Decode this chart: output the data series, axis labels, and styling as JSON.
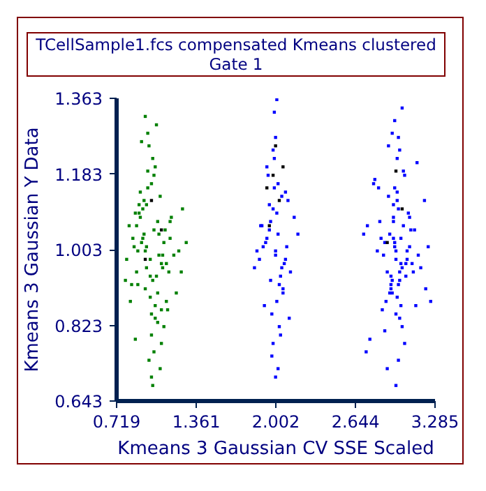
{
  "chart_data": {
    "type": "scatter",
    "title": "TCellSample1.fcs compensated Kmeans clustered",
    "subtitle": "Gate 1",
    "xlabel": "Kmeans 3 Gaussian CV SSE Scaled",
    "ylabel": "Kmeans 3 Gaussian Y Data",
    "xlim": [
      0.719,
      3.285
    ],
    "xticks": [
      0.719,
      1.361,
      2.002,
      2.644,
      3.285
    ],
    "ylim": [
      0.643,
      1.363
    ],
    "yticks": [
      0.643,
      0.823,
      1.003,
      1.183,
      1.363
    ],
    "grid": false,
    "marker": "square",
    "series": [
      {
        "color": "#008000",
        "x": [
          0.95,
          1.02,
          0.88,
          1.1,
          0.99,
          0.93,
          1.05,
          1.15,
          0.85,
          1.01,
          0.97,
          1.08,
          0.91,
          1.12,
          0.96,
          1.03,
          0.89,
          1.06,
          1.0,
          0.94,
          1.18,
          0.82,
          1.04,
          0.98,
          1.09,
          0.92,
          1.13,
          0.87,
          1.0,
          1.07,
          0.95,
          1.22,
          0.8,
          1.02,
          0.99,
          1.11,
          0.9,
          1.05,
          0.97,
          1.14,
          0.86,
          1.03,
          1.0,
          0.93,
          1.08,
          1.25,
          0.79,
          1.01,
          0.96,
          1.1,
          0.88,
          1.06,
          0.98,
          1.16,
          0.84,
          1.04,
          0.94,
          1.02,
          1.12,
          0.91,
          1.28,
          0.83,
          1.07,
          0.97,
          1.0,
          0.89,
          1.2,
          0.92,
          1.05,
          0.99,
          1.03,
          0.95,
          1.09,
          0.87,
          1.15,
          1.01,
          0.96,
          1.08,
          1.24,
          0.9
        ],
        "values": [
          1.0,
          1.05,
          0.95,
          1.02,
          0.98,
          1.1,
          0.9,
          1.07,
          1.03,
          0.93,
          1.15,
          0.97,
          1.08,
          0.88,
          1.01,
          1.2,
          0.92,
          1.04,
          0.85,
          1.12,
          0.99,
          1.06,
          0.94,
          1.25,
          0.96,
          1.02,
          0.86,
          1.09,
          0.8,
          1.13,
          0.91,
          1.0,
          0.98,
          1.18,
          0.89,
          1.05,
          1.11,
          0.83,
          1.28,
          0.95,
          1.01,
          0.87,
          1.16,
          1.03,
          0.78,
          1.1,
          0.93,
          1.22,
          0.96,
          0.82,
          1.06,
          0.99,
          0.74,
          1.08,
          0.92,
          1.3,
          1.04,
          0.76,
          0.97,
          1.14,
          1.02,
          0.88,
          0.72,
          1.19,
          0.7,
          1.0,
          0.9,
          1.26,
          1.07,
          0.94,
          0.84,
          1.32,
          0.99,
          0.79,
          1.03,
          0.68,
          1.11,
          0.86,
          0.95,
          1.09
        ]
      },
      {
        "color": "#0000ff",
        "x": [
          2.0,
          1.95,
          2.05,
          1.98,
          2.03,
          1.92,
          2.08,
          1.99,
          2.01,
          1.96,
          2.04,
          1.9,
          2.1,
          1.97,
          2.02,
          1.94,
          2.06,
          2.0,
          1.88,
          2.12,
          1.99,
          2.03,
          1.93,
          2.07,
          1.98,
          2.01,
          1.85,
          2.15,
          2.0,
          1.96,
          2.05,
          1.91,
          2.09,
          1.97,
          2.02,
          1.83,
          2.18,
          1.99,
          2.04,
          1.95,
          2.0,
          1.93,
          2.06,
          1.89,
          2.11,
          1.98,
          2.02,
          1.87,
          2.08,
          2.01,
          2.97,
          2.92,
          3.02,
          2.95,
          3.0,
          2.88,
          3.06,
          2.98,
          2.94,
          3.03,
          2.9,
          3.08,
          2.96,
          3.01,
          2.85,
          3.1,
          2.99,
          2.93,
          3.04,
          2.87,
          3.12,
          2.97,
          2.91,
          3.05,
          2.82,
          3.14,
          2.98,
          2.95,
          3.02,
          2.79,
          3.17,
          2.96,
          3.0,
          2.89,
          3.07,
          2.93,
          3.01,
          2.76,
          3.2,
          2.97,
          2.99,
          2.86,
          3.09,
          2.94,
          3.03,
          2.73,
          3.23,
          2.98,
          2.92,
          3.05,
          2.96,
          3.0,
          2.84,
          3.11,
          2.95,
          2.9,
          3.06,
          2.71,
          3.25,
          2.98,
          2.93,
          3.02,
          2.88,
          3.08,
          2.97,
          2.8,
          3.15,
          2.99,
          2.91,
          3.04,
          2.95,
          3.01,
          2.83,
          3.13,
          2.96,
          2.74,
          3.21,
          2.99,
          2.94,
          3.0
        ],
        "values": [
          1.0,
          1.05,
          0.96,
          1.1,
          0.92,
          1.02,
          0.98,
          1.15,
          0.88,
          1.07,
          0.94,
          1.01,
          1.12,
          0.85,
          1.04,
          1.18,
          0.9,
          0.99,
          1.06,
          0.95,
          1.22,
          0.82,
          1.03,
          0.97,
          0.78,
          1.09,
          1.0,
          1.08,
          1.27,
          0.93,
          1.13,
          0.87,
          1.01,
          0.75,
          1.16,
          0.96,
          1.04,
          1.33,
          0.8,
          1.11,
          0.7,
          1.2,
          0.91,
          1.06,
          0.84,
          1.24,
          0.72,
          0.98,
          1.14,
          1.36,
          1.0,
          1.04,
          0.96,
          1.08,
          0.93,
          1.02,
          0.98,
          1.12,
          0.9,
          1.06,
          0.95,
          1.01,
          1.15,
          0.87,
          1.03,
          0.97,
          1.1,
          0.92,
          1.18,
          0.99,
          1.05,
          0.85,
          1.13,
          0.94,
          1.0,
          1.21,
          0.89,
          1.07,
          0.82,
          1.16,
          0.96,
          1.02,
          1.24,
          0.88,
          1.09,
          0.91,
          1.03,
          0.79,
          1.12,
          0.98,
          1.27,
          0.86,
          1.05,
          0.93,
          1.19,
          0.76,
          1.01,
          1.14,
          0.9,
          0.97,
          1.31,
          0.84,
          1.07,
          0.95,
          1.11,
          0.72,
          1.0,
          1.04,
          0.88,
          1.22,
          0.94,
          1.34,
          0.81,
          1.08,
          0.68,
          1.17,
          0.99,
          0.92,
          1.25,
          0.78,
          1.03,
          0.97,
          1.15,
          0.87,
          1.01,
          1.06,
          0.91,
          0.74,
          1.28,
          0.95
        ]
      },
      {
        "color": "#000000",
        "x": [
          1.98,
          2.03,
          1.95,
          2.06,
          2.0,
          1.93,
          2.97,
          3.02,
          2.9,
          1.0,
          0.95,
          1.08
        ],
        "values": [
          1.18,
          1.12,
          1.06,
          1.2,
          1.25,
          1.15,
          1.19,
          1.1,
          1.02,
          1.12,
          0.98,
          1.05
        ]
      }
    ]
  }
}
